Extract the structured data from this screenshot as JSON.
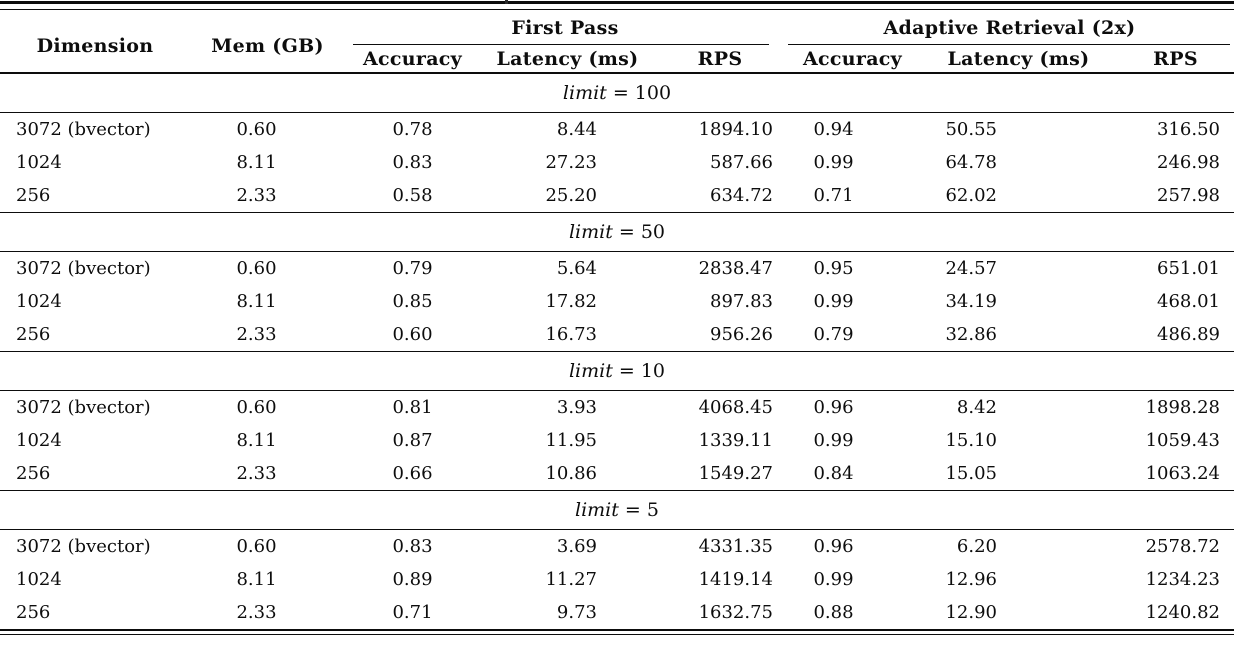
{
  "table": {
    "headers": {
      "dimension": "Dimension",
      "mem": "Mem (GB)",
      "first_pass": "First Pass",
      "adaptive": "Adaptive Retrieval (2x)",
      "sub": [
        "Accuracy",
        "Latency (ms)",
        "RPS",
        "Accuracy",
        "Latency (ms)",
        "RPS"
      ]
    },
    "sections": [
      {
        "limit_var": "limit",
        "limit_value": "= 100",
        "rows": [
          [
            "3072 (bvector)",
            "0.60",
            "0.78",
            "8.44",
            "1894.10",
            "0.94",
            "50.55",
            "316.50"
          ],
          [
            "1024",
            "8.11",
            "0.83",
            "27.23",
            "587.66",
            "0.99",
            "64.78",
            "246.98"
          ],
          [
            "256",
            "2.33",
            "0.58",
            "25.20",
            "634.72",
            "0.71",
            "62.02",
            "257.98"
          ]
        ]
      },
      {
        "limit_var": "limit",
        "limit_value": "= 50",
        "rows": [
          [
            "3072 (bvector)",
            "0.60",
            "0.79",
            "5.64",
            "2838.47",
            "0.95",
            "24.57",
            "651.01"
          ],
          [
            "1024",
            "8.11",
            "0.85",
            "17.82",
            "897.83",
            "0.99",
            "34.19",
            "468.01"
          ],
          [
            "256",
            "2.33",
            "0.60",
            "16.73",
            "956.26",
            "0.79",
            "32.86",
            "486.89"
          ]
        ]
      },
      {
        "limit_var": "limit",
        "limit_value": "= 10",
        "rows": [
          [
            "3072 (bvector)",
            "0.60",
            "0.81",
            "3.93",
            "4068.45",
            "0.96",
            "8.42",
            "1898.28"
          ],
          [
            "1024",
            "8.11",
            "0.87",
            "11.95",
            "1339.11",
            "0.99",
            "15.10",
            "1059.43"
          ],
          [
            "256",
            "2.33",
            "0.66",
            "10.86",
            "1549.27",
            "0.84",
            "15.05",
            "1063.24"
          ]
        ]
      },
      {
        "limit_var": "limit",
        "limit_value": "= 5",
        "rows": [
          [
            "3072 (bvector)",
            "0.60",
            "0.83",
            "3.69",
            "4331.35",
            "0.96",
            "6.20",
            "2578.72"
          ],
          [
            "1024",
            "8.11",
            "0.89",
            "11.27",
            "1419.14",
            "0.99",
            "12.96",
            "1234.23"
          ],
          [
            "256",
            "2.33",
            "0.71",
            "9.73",
            "1632.75",
            "0.88",
            "12.90",
            "1240.82"
          ]
        ]
      }
    ]
  }
}
